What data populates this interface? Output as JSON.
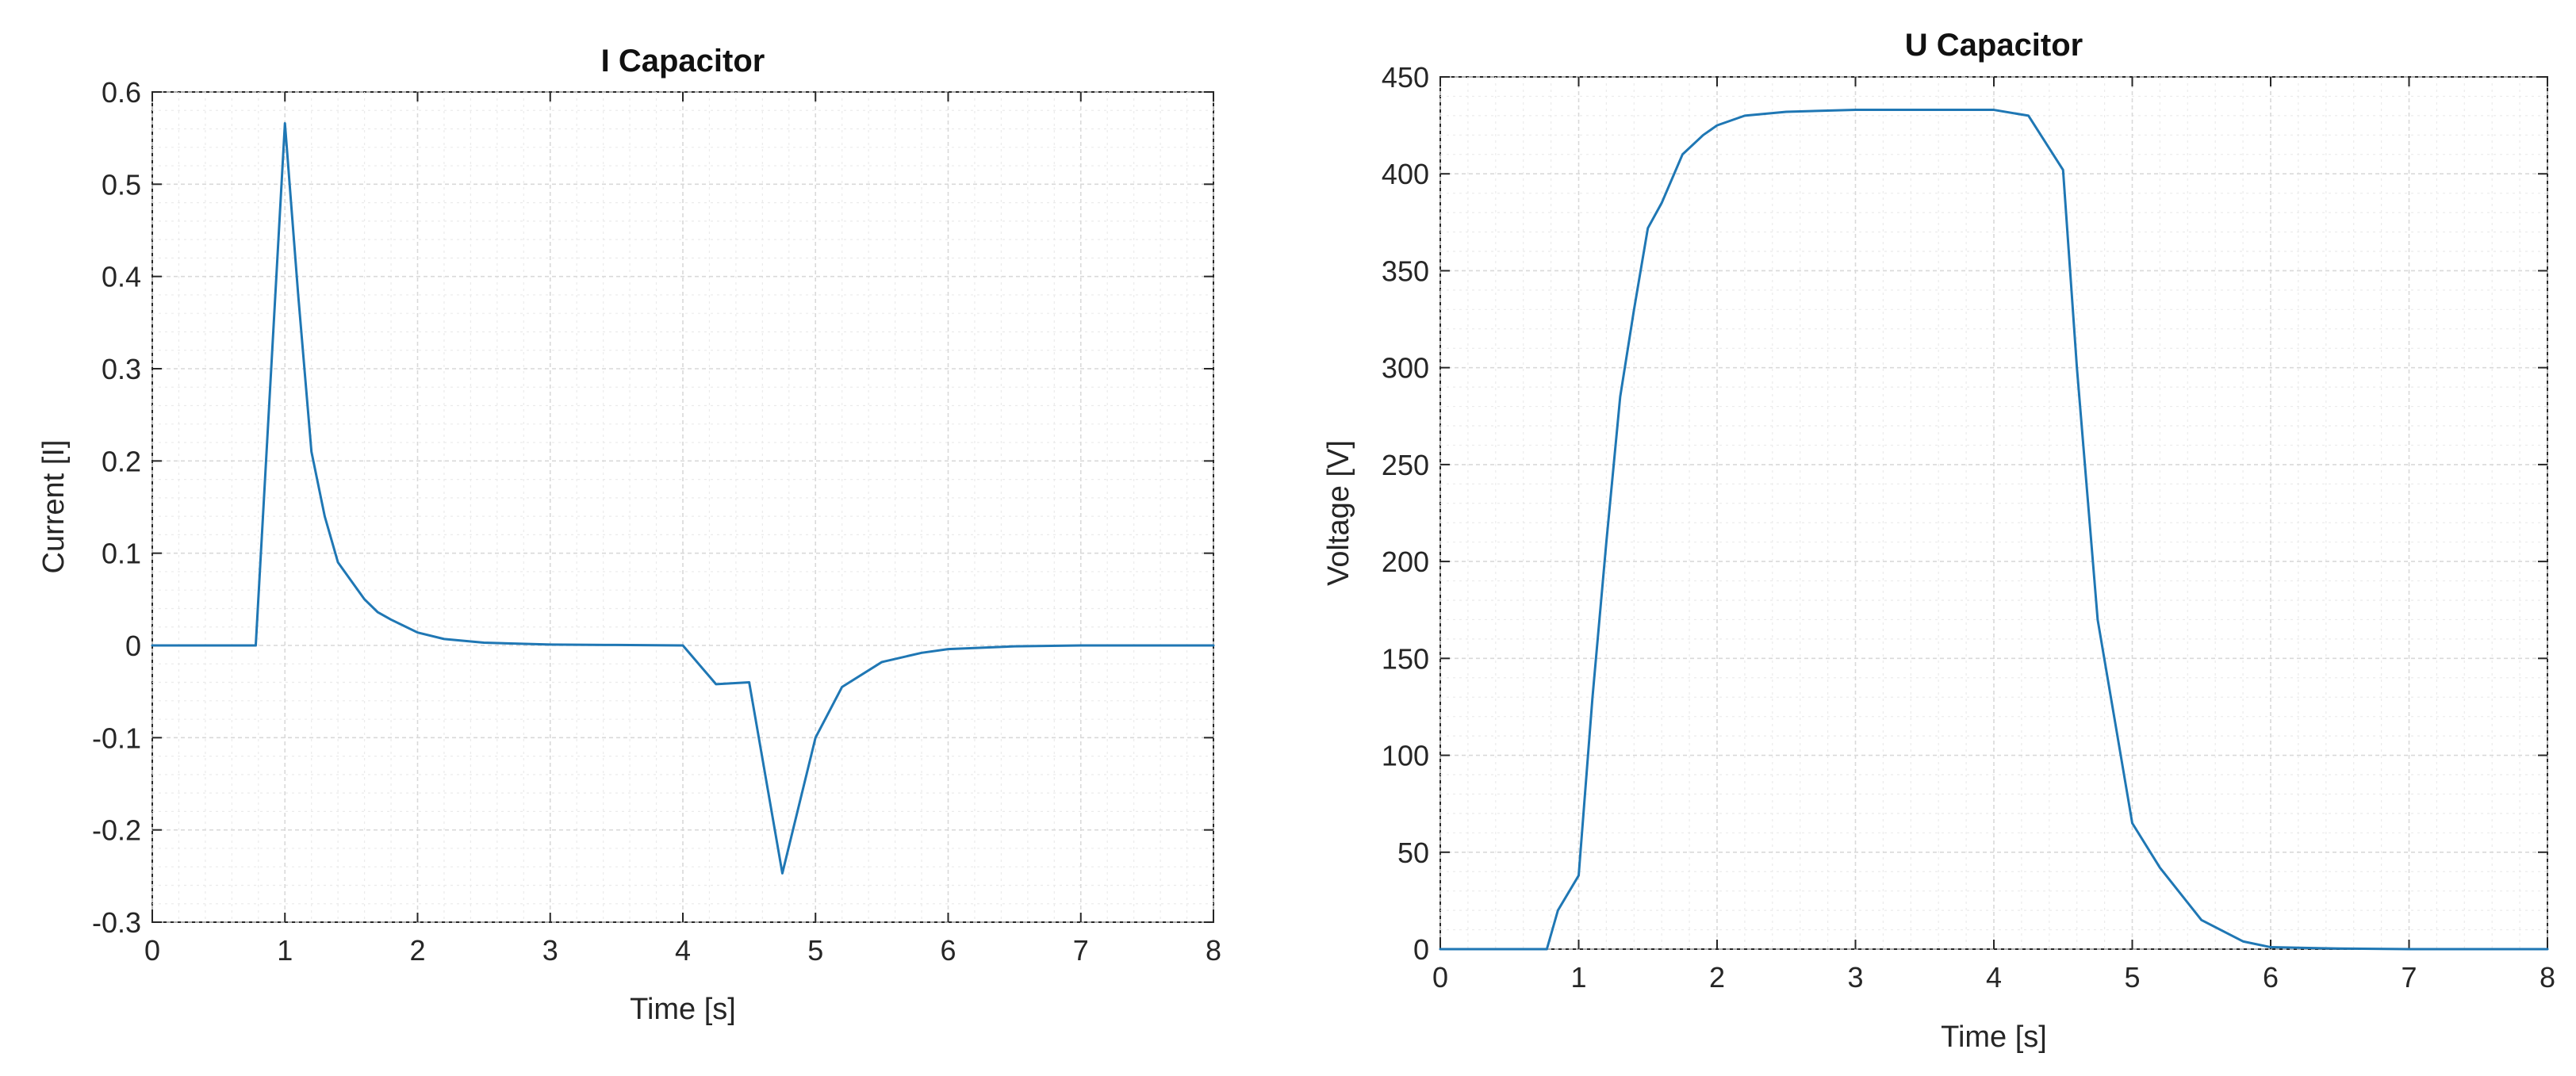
{
  "chart_data": [
    {
      "type": "line",
      "title": "I Capacitor",
      "xlabel": "Time [s]",
      "ylabel": "Current [I]",
      "xlim": [
        0,
        8
      ],
      "ylim": [
        -0.3,
        0.6
      ],
      "xticks": [
        0,
        1,
        2,
        3,
        4,
        5,
        6,
        7,
        8
      ],
      "xtick_labels": [
        "0",
        "1",
        "2",
        "3",
        "4",
        "5",
        "6",
        "7",
        "8"
      ],
      "yticks": [
        -0.3,
        -0.2,
        -0.1,
        0,
        0.1,
        0.2,
        0.3,
        0.4,
        0.5,
        0.6
      ],
      "ytick_labels": [
        "-0.3",
        "-0.2",
        "-0.1",
        "0",
        "0.1",
        "0.2",
        "0.3",
        "0.4",
        "0.5",
        "0.6"
      ],
      "grid": true,
      "minor_grid": true,
      "color": "#1f77b4",
      "series": [
        {
          "x": [
            0,
            0.75,
            0.78,
            1.0,
            1.1,
            1.2,
            1.3,
            1.4,
            1.5,
            1.6,
            1.7,
            1.8,
            2.0,
            2.2,
            2.5,
            3.0,
            3.5,
            4.0,
            4.25,
            4.5,
            4.75,
            5.0,
            5.2,
            5.5,
            5.8,
            6.0,
            6.5,
            7.0,
            8.0
          ],
          "y": [
            0,
            0,
            0,
            0.566,
            0.38,
            0.21,
            0.14,
            0.09,
            0.07,
            0.05,
            0.036,
            0.028,
            0.014,
            0.007,
            0.003,
            0.001,
            0.0005,
            0,
            -0.042,
            -0.04,
            -0.247,
            -0.1,
            -0.045,
            -0.018,
            -0.008,
            -0.004,
            -0.001,
            0,
            0
          ]
        }
      ]
    },
    {
      "type": "line",
      "title": "U Capacitor",
      "xlabel": "Time [s]",
      "ylabel": "Voltage [V]",
      "xlim": [
        0,
        8
      ],
      "ylim": [
        0,
        450
      ],
      "xticks": [
        0,
        1,
        2,
        3,
        4,
        5,
        6,
        7,
        8
      ],
      "xtick_labels": [
        "0",
        "1",
        "2",
        "3",
        "4",
        "5",
        "6",
        "7",
        "8"
      ],
      "yticks": [
        0,
        50,
        100,
        150,
        200,
        250,
        300,
        350,
        400,
        450
      ],
      "ytick_labels": [
        "0",
        "50",
        "100",
        "150",
        "200",
        "250",
        "300",
        "350",
        "400",
        "450"
      ],
      "grid": true,
      "minor_grid": true,
      "color": "#1f77b4",
      "series": [
        {
          "x": [
            0,
            0.77,
            0.85,
            1.0,
            1.1,
            1.2,
            1.3,
            1.4,
            1.5,
            1.6,
            1.75,
            1.9,
            2.0,
            2.2,
            2.5,
            3.0,
            3.5,
            4.0,
            4.25,
            4.5,
            4.6,
            4.75,
            5.0,
            5.2,
            5.5,
            5.8,
            6.0,
            6.5,
            7.0,
            8.0
          ],
          "y": [
            0,
            0,
            20,
            38,
            130,
            210,
            285,
            330,
            372,
            385,
            410,
            420,
            425,
            430,
            432,
            433,
            433,
            433,
            430,
            402,
            300,
            170,
            65,
            42,
            15,
            4,
            1,
            0.3,
            0,
            0
          ]
        }
      ]
    }
  ]
}
